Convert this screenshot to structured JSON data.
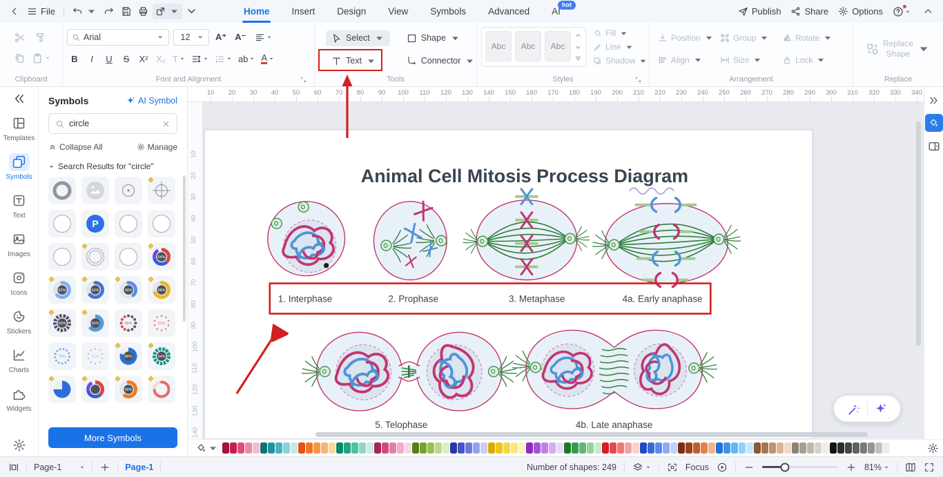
{
  "titlebar": {
    "file": "File",
    "tabs": [
      {
        "label": "Home",
        "active": true
      },
      {
        "label": "Insert"
      },
      {
        "label": "Design"
      },
      {
        "label": "View"
      },
      {
        "label": "Symbols"
      },
      {
        "label": "Advanced"
      },
      {
        "label": "AI",
        "badge": "hot"
      }
    ],
    "publish": "Publish",
    "share": "Share",
    "options": "Options"
  },
  "ribbon": {
    "font_name": "Arial",
    "font_size": "12",
    "bold": "B",
    "italic": "I",
    "underline": "U",
    "strike": "S",
    "superscript": "X²",
    "subscript": "X₂",
    "text_style": "T",
    "char_spacing": "ab",
    "font_color": "A",
    "increase_font": "A⁺",
    "decrease_font": "A⁻",
    "select": "Select",
    "shape": "Shape",
    "text": "Text",
    "connector": "Connector",
    "style_samples": [
      "Abc",
      "Abc",
      "Abc"
    ],
    "fill": "Fill",
    "line": "Line",
    "shadow": "Shadow",
    "position": "Position",
    "group": "Group",
    "rotate": "Rotate",
    "align": "Align",
    "size": "Size",
    "lock": "Lock",
    "replace_shape": "Replace Shape",
    "group_labels": {
      "clipboard": "Clipboard",
      "font": "Font and Alignment",
      "tools": "Tools",
      "styles": "Styles",
      "arrangement": "Arrangement",
      "replace": "Replace"
    }
  },
  "sidebar": {
    "items": [
      {
        "label": "Templates",
        "icon": "templates"
      },
      {
        "label": "Symbols",
        "icon": "symbols2",
        "active": true
      },
      {
        "label": "Text",
        "icon": "textpanel"
      },
      {
        "label": "Images",
        "icon": "images"
      },
      {
        "label": "Icons",
        "icon": "iconsic"
      },
      {
        "label": "Stickers",
        "icon": "stickers"
      },
      {
        "label": "Charts",
        "icon": "charts"
      },
      {
        "label": "Widgets",
        "icon": "widgets"
      }
    ]
  },
  "symbols_panel": {
    "title": "Symbols",
    "ai_symbol": "AI Symbol",
    "search_value": "circle",
    "collapse_all": "Collapse All",
    "manage": "Manage",
    "results_header": "Search Results for  \"circle\"",
    "more_symbols": "More Symbols",
    "grid": [
      {
        "type": "ring-thick"
      },
      {
        "type": "image"
      },
      {
        "type": "dot"
      },
      {
        "type": "crosshair",
        "badge": true
      },
      {
        "type": "circle"
      },
      {
        "type": "parking",
        "label": "P"
      },
      {
        "type": "circle"
      },
      {
        "type": "circle"
      },
      {
        "type": "circle"
      },
      {
        "type": "double",
        "badge": true
      },
      {
        "type": "circle"
      },
      {
        "type": "donut-multi",
        "pct": "64%",
        "badge": true
      },
      {
        "type": "donut",
        "pct": "62%",
        "color": "#7fb0f0",
        "badge": true
      },
      {
        "type": "donut",
        "pct": "63%",
        "color": "#4a72d8",
        "badge": true
      },
      {
        "type": "donut",
        "pct": "38%",
        "color": "#5b8def",
        "badge": true
      },
      {
        "type": "donut",
        "pct": "68%",
        "color": "#f0b429",
        "badge": true
      },
      {
        "type": "segmented",
        "pct": "59%",
        "color": "#f0b429",
        "color2": "#2d3e8f",
        "badge": true
      },
      {
        "type": "pie",
        "pct": "65%",
        "color": "#5b9bd5",
        "badge": true
      },
      {
        "type": "dotted",
        "pct": "55%",
        "color": "#d9534f"
      },
      {
        "type": "dots",
        "pct": "82%",
        "color": "#e8837e"
      },
      {
        "type": "dashed",
        "pct": "70%",
        "color": "#7fb0f0"
      },
      {
        "type": "dots",
        "pct": "61%",
        "color": "#a8c8f0"
      },
      {
        "type": "pie",
        "pct": "80%",
        "color": "#2d6fd8",
        "badge": true
      },
      {
        "type": "segmented",
        "pct": "54%",
        "color": "#2ec4b6",
        "color2": "#17867b",
        "badge": true
      },
      {
        "type": "pie",
        "pct": "",
        "color": "#2d6fd8",
        "badge": true
      },
      {
        "type": "donut-multi",
        "pct": "",
        "badge": true
      },
      {
        "type": "donut",
        "pct": "58%",
        "color": "#f07a1f",
        "badge": true
      },
      {
        "type": "partial",
        "pct": "",
        "color": "#e86a6a",
        "badge": true
      }
    ]
  },
  "canvas": {
    "h_ruler": [
      10,
      20,
      30,
      40,
      50,
      60,
      70,
      80,
      90,
      100,
      110,
      120,
      130,
      140,
      150,
      160,
      170,
      180,
      190,
      200,
      210,
      220,
      230,
      240,
      250,
      260,
      270,
      280,
      290,
      300,
      310,
      320,
      330,
      340
    ],
    "v_ruler": [
      10,
      20,
      30,
      40,
      50,
      60,
      70,
      80,
      90,
      100,
      110,
      120,
      130,
      140
    ],
    "diagram_title": "Animal Cell Mitosis Process Diagram",
    "phase_labels_top": [
      "1. Interphase",
      "2. Prophase",
      "3. Metaphase",
      "4a. Early anaphase"
    ],
    "phase_labels_bottom": [
      "5. Telophase",
      "4b. Late anaphase"
    ]
  },
  "palette": {
    "colors": [
      "#a2123d",
      "#c41f4e",
      "#d9527b",
      "#ea8aa8",
      "#f4bccd",
      "#117079",
      "#21939f",
      "#4bb3bd",
      "#8ad2d8",
      "#c4eaec",
      "#e25316",
      "#ef7627",
      "#f39743",
      "#f7b76f",
      "#fbd8a5",
      "#0d8768",
      "#21a585",
      "#50c1a4",
      "#8dd9c6",
      "#c8eee2",
      "#aa2458",
      "#cb4d80",
      "#df7ea7",
      "#eeadc8",
      "#f8d7e5",
      "#587e15",
      "#76a32c",
      "#98c052",
      "#bad987",
      "#dcefbe",
      "#2c36a9",
      "#4354c7",
      "#6a78da",
      "#97a2e9",
      "#c9cef5",
      "#dcaa00",
      "#efc614",
      "#f5d93f",
      "#f9e87d",
      "#fcf4bc",
      "#8a2ac2",
      "#a453d6",
      "#be82e6",
      "#d6adf0",
      "#edd7f9",
      "#177a2b",
      "#35984a",
      "#60b672",
      "#94d29f",
      "#c9ebcd",
      "#d71e1e",
      "#e64949",
      "#ee7772",
      "#f5a4a0",
      "#fbd0ce",
      "#1d49c1",
      "#3568dc",
      "#5e89e9",
      "#90adf3",
      "#c3d3f9",
      "#7c2b10",
      "#a03f1b",
      "#be5d2f",
      "#db8451",
      "#f0b68b",
      "#1e72da",
      "#3e94e9",
      "#66b6f3",
      "#8ed3f9",
      "#bdeafd",
      "#8a5a33",
      "#a87649",
      "#c29369",
      "#dcb692",
      "#f0d9c2",
      "#8a8579",
      "#a39e92",
      "#bcb8ac",
      "#d5d2c8",
      "#eeece5",
      "#141414",
      "#2d2d2d",
      "#464646",
      "#606060",
      "#7a7a7a",
      "#949494",
      "#c2c2c2",
      "#ededed"
    ]
  },
  "statusbar": {
    "page_select": "Page-1",
    "page_tab": "Page-1",
    "shapes_count": "Number of shapes: 249",
    "focus": "Focus",
    "zoom": "81%"
  },
  "colors": {
    "accent": "#1a73e8",
    "annotation": "#d21f1f",
    "cell_stroke": "#c2356f",
    "cell_fill": "#e9f1f8",
    "spindle_green": "#2f7d3b",
    "chromosome_pink": "#c23573",
    "chromosome_blue": "#4f93d8"
  }
}
